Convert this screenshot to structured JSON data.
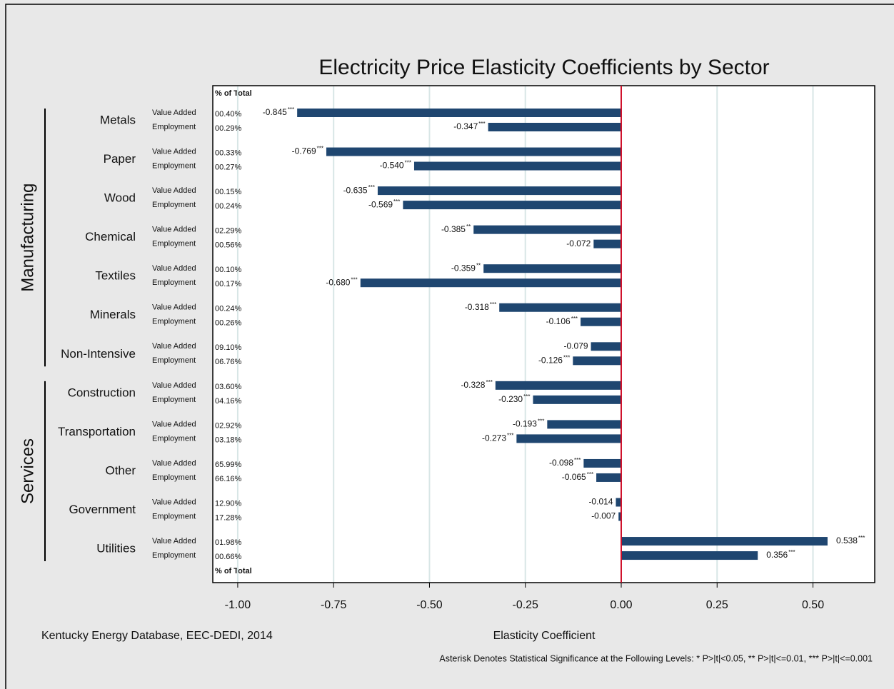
{
  "chart_data": {
    "type": "bar",
    "orientation": "horizontal",
    "title": "Electricity Price Elasticity Coefficients by Sector",
    "xlabel": "Elasticity Coefficient",
    "source": "Kentucky Energy Database, EEC-DEDI, 2014",
    "note": "Asterisk Denotes Statistical Significance at the Following Levels: * P>|t|<0.05, ** P>|t|<=0.01, *** P>|t|<=0.001",
    "share_header": "% of Total",
    "categories": [
      "Metals",
      "Paper",
      "Wood",
      "Chemical",
      "Textiles",
      "Minerals",
      "Non-Intensive",
      "Construction",
      "Transportation",
      "Other",
      "Government",
      "Utilities"
    ],
    "groups": [
      {
        "name": "Manufacturing",
        "count": 7
      },
      {
        "name": "Services",
        "count": 5
      }
    ],
    "series": [
      {
        "name": "Value Added",
        "color": "#1f4670",
        "values": [
          -0.845,
          -0.769,
          -0.635,
          -0.385,
          -0.359,
          -0.318,
          -0.079,
          -0.328,
          -0.193,
          -0.098,
          -0.014,
          0.538
        ],
        "value_labels": [
          "-0.845",
          "-0.769",
          "-0.635",
          "-0.385",
          "-0.359",
          "-0.318",
          "-0.079",
          "-0.328",
          "-0.193",
          "-0.098",
          "-0.014",
          "0.538"
        ],
        "significance": [
          "***",
          "***",
          "***",
          "**",
          "**",
          "***",
          "",
          "***",
          "***",
          "***",
          "",
          "***"
        ],
        "shares": [
          "00.40%",
          "00.33%",
          "00.15%",
          "02.29%",
          "00.10%",
          "00.24%",
          "09.10%",
          "03.60%",
          "02.92%",
          "65.99%",
          "12.90%",
          "01.98%"
        ]
      },
      {
        "name": "Employment",
        "color": "#1f4670",
        "values": [
          -0.347,
          -0.54,
          -0.569,
          -0.072,
          -0.68,
          -0.106,
          -0.126,
          -0.23,
          -0.273,
          -0.065,
          -0.007,
          0.356
        ],
        "value_labels": [
          "-0.347",
          "-0.540",
          "-0.569",
          "-0.072",
          "-0.680",
          "-0.106",
          "-0.126",
          "-0.230",
          "-0.273",
          "-0.065",
          "-0.007",
          "0.356"
        ],
        "significance": [
          "***",
          "***",
          "***",
          "",
          "***",
          "***",
          "***",
          "***",
          "***",
          "***",
          "",
          "***"
        ],
        "shares": [
          "00.29%",
          "00.27%",
          "00.24%",
          "00.56%",
          "00.17%",
          "00.26%",
          "06.76%",
          "04.16%",
          "03.18%",
          "66.16%",
          "17.28%",
          "00.66%"
        ]
      }
    ],
    "xlim": [
      -1.065,
      0.661
    ],
    "xticks": [
      {
        "value": -1,
        "label": "-1.00"
      },
      {
        "value": -0.75,
        "label": "-0.75"
      },
      {
        "value": -0.5,
        "label": "-0.50"
      },
      {
        "value": -0.25,
        "label": "-0.25"
      },
      {
        "value": 0,
        "label": "0.00"
      },
      {
        "value": 0.25,
        "label": "0.25"
      },
      {
        "value": 0.5,
        "label": "0.50"
      }
    ],
    "grid": true,
    "reference_line": {
      "value": 0,
      "color": "#d0102a"
    }
  }
}
